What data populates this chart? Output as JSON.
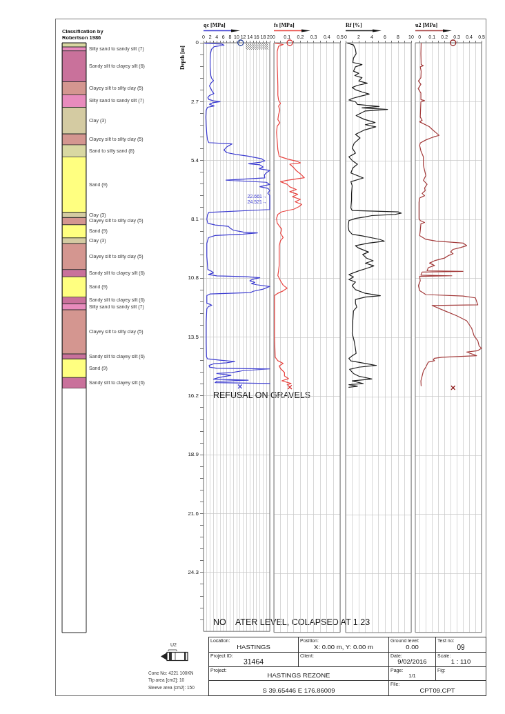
{
  "chart_data": [
    {
      "type": "bar",
      "stacked": true,
      "title": "Classification by Robertson 1986",
      "categories": [
        null
      ],
      "ylim": [
        27,
        0
      ],
      "tick_labels": false,
      "series": [
        {
          "color": "#d9d8a2",
          "values": [
            0.19
          ]
        },
        {
          "name": "Silty sand to sandy silt (7)",
          "color": "#e88bbd",
          "values": [
            0.18
          ]
        },
        {
          "name": "Sandy silt to clayey silt (6)",
          "color": "#c9719b",
          "values": [
            1.41
          ]
        },
        {
          "name": "Clayey silt to silty clay (5)",
          "color": "#d49690",
          "values": [
            0.6
          ]
        },
        {
          "name": "Silty sand to sandy silt (7)",
          "color": "#e88bbd",
          "values": [
            0.57
          ]
        },
        {
          "name": "Clay (3)",
          "color": "#d4cba2",
          "values": [
            1.22
          ]
        },
        {
          "name": "Clayey silt to silty clay (5)",
          "color": "#d49690",
          "values": [
            0.5
          ]
        },
        {
          "name": "Sand to silty sand (8)",
          "color": "#d9d8a2",
          "values": [
            0.56
          ]
        },
        {
          "name": "Sand (9)",
          "color": "#ffff80",
          "values": [
            2.54
          ]
        },
        {
          "name": "Clay (3)",
          "color": "#d4cba2",
          "values": [
            0.23
          ]
        },
        {
          "name": "Clayey silt to silty clay (5)",
          "color": "#d49690",
          "values": [
            0.33
          ]
        },
        {
          "name": "Sand (9)",
          "color": "#ffff80",
          "values": [
            0.6
          ]
        },
        {
          "name": "Clay (3)",
          "color": "#d4cba2",
          "values": [
            0.26
          ]
        },
        {
          "name": "Clayey silt to silty clay (5)",
          "color": "#d49690",
          "values": [
            1.19
          ]
        },
        {
          "name": "Sandy silt to clayey silt (6)",
          "color": "#c9719b",
          "values": [
            0.33
          ]
        },
        {
          "name": "Sand (9)",
          "color": "#ffff80",
          "values": [
            0.93
          ]
        },
        {
          "name": "Sandy silt to clayey silt (6)",
          "color": "#c9719b",
          "values": [
            0.31
          ]
        },
        {
          "name": "Silty sand to sandy silt (7)",
          "color": "#e88bbd",
          "values": [
            0.27
          ]
        },
        {
          "name": "Clayey silt to silty clay (5)",
          "color": "#d49690",
          "values": [
            2.02
          ]
        },
        {
          "name": "Sandy silt to clayey silt (6)",
          "color": "#c9719b",
          "values": [
            0.23
          ]
        },
        {
          "name": "Sand (9)",
          "color": "#ffff80",
          "values": [
            0.85
          ]
        },
        {
          "name": "Sandy silt to clayey silt (6)",
          "color": "#c9719b",
          "values": [
            0.5
          ]
        }
      ]
    },
    {
      "type": "line",
      "xlabel": "qc [MPa]",
      "ylabel": "Depth [m]",
      "xlim": [
        0,
        20
      ],
      "ylim": [
        27,
        0
      ],
      "grid": true,
      "xticks": [
        0,
        {
          "value": 1,
          "label": null
        },
        2,
        {
          "value": 3,
          "label": null
        },
        4,
        {
          "value": 5,
          "label": null
        },
        6,
        {
          "value": 7,
          "label": null
        },
        8,
        {
          "value": 9,
          "label": null
        },
        10,
        {
          "value": 11,
          "label": null
        },
        12,
        {
          "value": 13,
          "label": null
        },
        14,
        {
          "value": 15,
          "label": null
        },
        16,
        {
          "value": 17,
          "label": null
        },
        18,
        {
          "value": 19,
          "label": null
        },
        20
      ],
      "yticks": [
        0,
        {
          "value": 0.54,
          "label": null
        },
        {
          "value": 1.08,
          "label": null
        },
        {
          "value": 1.62,
          "label": null
        },
        {
          "value": 2.16,
          "label": null
        },
        2.7,
        {
          "value": 3.24,
          "label": null
        },
        {
          "value": 3.78,
          "label": null
        },
        {
          "value": 4.32,
          "label": null
        },
        {
          "value": 4.86,
          "label": null
        },
        5.4,
        {
          "value": 5.94,
          "label": null
        },
        {
          "value": 6.48,
          "label": null
        },
        {
          "value": 7.02,
          "label": null
        },
        {
          "value": 7.56,
          "label": null
        },
        8.1,
        {
          "value": 8.64,
          "label": null
        },
        {
          "value": 9.18,
          "label": null
        },
        {
          "value": 9.72,
          "label": null
        },
        {
          "value": 10.26,
          "label": null
        },
        10.8,
        {
          "value": 11.34,
          "label": null
        },
        {
          "value": 11.88,
          "label": null
        },
        {
          "value": 12.42,
          "label": null
        },
        {
          "value": 12.96,
          "label": null
        },
        13.5,
        {
          "value": 14.04,
          "label": null
        },
        {
          "value": 14.58,
          "label": null
        },
        {
          "value": 15.12,
          "label": null
        },
        {
          "value": 15.66,
          "label": null
        },
        16.2,
        {
          "value": 16.74,
          "label": null
        },
        {
          "value": 17.28,
          "label": null
        },
        {
          "value": 17.82,
          "label": null
        },
        {
          "value": 18.36,
          "label": null
        },
        18.9,
        {
          "value": 19.44,
          "label": null
        },
        {
          "value": 19.98,
          "label": null
        },
        {
          "value": 20.52,
          "label": null
        },
        {
          "value": 21.06,
          "label": null
        },
        21.6,
        {
          "value": 22.14,
          "label": null
        },
        {
          "value": 22.68,
          "label": null
        },
        {
          "value": 23.22,
          "label": null
        },
        {
          "value": 23.76,
          "label": null
        },
        24.3,
        {
          "value": 24.84,
          "label": null
        },
        {
          "value": 25.38,
          "label": null
        },
        {
          "value": 25.92,
          "label": null
        },
        {
          "value": 26.46,
          "label": null
        }
      ],
      "series": [
        {
          "color": "#3b3bd1",
          "x": [
            0.4,
            5.5,
            6.2,
            3.2,
            2.4,
            2.1,
            2.0,
            2.0,
            2.1,
            2.2,
            2.4,
            3.0,
            2.3,
            1.8,
            2.2,
            2.6,
            3.1,
            1.8,
            1.3,
            1.6,
            3.0,
            5.0,
            2.8,
            1.8,
            3.2,
            1.2,
            0.8,
            0.7,
            0.8,
            1.0,
            1.2,
            1.6,
            8.6,
            7.0,
            6.2,
            7.0,
            9.8,
            13.5,
            17.5,
            18.5,
            17.2,
            13.6,
            17.0,
            18.0,
            16.8,
            20,
            19.0,
            18.4,
            18.5,
            6.8,
            19.0,
            20,
            17.0,
            19.5,
            20,
            19.4,
            20,
            20,
            20,
            1.6,
            1.2,
            1.0,
            1.3,
            3.5,
            7.5,
            8.0,
            9.0,
            12.0,
            16.3,
            12.0,
            3.5,
            1.5,
            1.0,
            1.0,
            1.3,
            2.5,
            3.0,
            1.5,
            4.0,
            13.0,
            17.0,
            14.8,
            14.0,
            15.5,
            14.5,
            16.0,
            20,
            18.0,
            15.0,
            14.2,
            2.0,
            1.0,
            1.0,
            1.8,
            2.5,
            1.5,
            1.0,
            0.8,
            0.8,
            0.9,
            1.2,
            5.0,
            9.5,
            7.0,
            3.0,
            1.7,
            1.8,
            4.0,
            20,
            12.0,
            8.5,
            4.0,
            8.3,
            4.5,
            3.0,
            13.5,
            4.0,
            3.5,
            20
          ],
          "values": [
            0.02,
            0.06,
            0.11,
            0.18,
            0.3,
            0.5,
            0.8,
            1.1,
            1.3,
            1.5,
            1.62,
            1.74,
            1.84,
            1.98,
            2.1,
            2.22,
            2.33,
            2.42,
            2.52,
            2.6,
            2.66,
            2.7,
            2.75,
            2.82,
            2.9,
            2.96,
            3.1,
            3.4,
            3.8,
            4.2,
            4.45,
            4.58,
            4.64,
            4.78,
            4.92,
            5.04,
            5.12,
            5.2,
            5.32,
            5.42,
            5.48,
            5.55,
            5.6,
            5.7,
            5.78,
            5.86,
            5.96,
            6.06,
            6.2,
            6.3,
            6.4,
            6.5,
            6.6,
            6.68,
            6.78,
            6.9,
            7.0,
            7.4,
            7.65,
            7.78,
            7.9,
            8.1,
            8.28,
            8.36,
            8.42,
            8.5,
            8.6,
            8.68,
            8.72,
            8.78,
            8.84,
            8.94,
            9.2,
            9.8,
            10.4,
            10.49,
            10.56,
            10.63,
            10.69,
            10.73,
            10.78,
            10.85,
            10.92,
            10.99,
            11.05,
            11.1,
            11.18,
            11.3,
            11.4,
            11.46,
            11.52,
            11.6,
            11.95,
            11.99,
            12.04,
            12.1,
            12.2,
            12.8,
            13.8,
            14.4,
            14.5,
            14.56,
            14.62,
            14.68,
            14.73,
            14.8,
            14.88,
            14.93,
            14.96,
            15.04,
            15.13,
            15.17,
            15.26,
            15.36,
            15.43,
            15.48,
            15.53,
            15.59,
            15.63
          ]
        },
        {
          "type": "scatter",
          "marker": "circle",
          "color": "#1f3a93",
          "x": [
            11.2
          ],
          "values": [
            0
          ]
        },
        {
          "type": "scatter",
          "marker": "cross",
          "color": "#3b3bd1",
          "x": [
            11
          ],
          "values": [
            15.77
          ]
        }
      ],
      "annotations": [
        {
          "text": "22.661→",
          "x": 20,
          "y": 7.05
        },
        {
          "text": "24.521→",
          "x": 20,
          "y": 7.3
        },
        "REFUSAL ON GRAVELS",
        "NO    ATER LEVEL, COLAPSED AT 1.23"
      ]
    },
    {
      "type": "line",
      "xlabel": "fs [MPa]",
      "xlim": [
        0,
        0.5
      ],
      "ylim": [
        27,
        0
      ],
      "grid": true,
      "tick_labels": "x",
      "xticks": [
        0,
        {
          "value": 0.05,
          "label": null
        },
        0.1,
        {
          "value": 0.15,
          "label": null
        },
        0.2,
        {
          "value": 0.25,
          "label": null
        },
        0.3,
        {
          "value": 0.35,
          "label": null
        },
        0.4,
        {
          "value": 0.45,
          "label": null
        },
        0.5
      ],
      "yticks": [
        0,
        2.7,
        5.4,
        8.1,
        10.8,
        13.5,
        16.2,
        18.9,
        21.6,
        24.3
      ],
      "series": [
        {
          "color": "#e8433f",
          "x": [
            0.01,
            0.07,
            0.035,
            0.025,
            0.025,
            0.028,
            0.03,
            0.03,
            0.035,
            0.05,
            0.035,
            0.045,
            0.035,
            0.03,
            0.045,
            0.025,
            0.02,
            0.025,
            0.03,
            0.04,
            0.1,
            0.18,
            0.2,
            0.12,
            0.15,
            0.17,
            0.2,
            0.23,
            0.1,
            0.05,
            0.1,
            0.12,
            0.17,
            0.12,
            0.18,
            0.14,
            0.2,
            0.16,
            0.21,
            0.19,
            0.15,
            0.06,
            0.03,
            0.02,
            0.025,
            0.04,
            0.06,
            0.05,
            0.07,
            0.05,
            0.04,
            0.04,
            0.04,
            0.035,
            0.03,
            0.05,
            0.07,
            0.1,
            0.07,
            0.03,
            0.005,
            0.005,
            0.005,
            0.01,
            0.03,
            0.07,
            0.04,
            0.05,
            0.08,
            0.08,
            0.11,
            0.06,
            0.13,
            0.1
          ],
          "values": [
            0.02,
            0.08,
            0.16,
            0.4,
            1.0,
            1.5,
            2.0,
            2.4,
            2.62,
            2.78,
            2.9,
            3.08,
            3.3,
            3.52,
            3.66,
            3.82,
            4.1,
            4.5,
            4.9,
            5.2,
            5.32,
            5.44,
            5.5,
            5.56,
            5.72,
            5.86,
            6.0,
            6.18,
            6.3,
            6.36,
            6.48,
            6.6,
            6.72,
            6.82,
            6.94,
            7.05,
            7.17,
            7.28,
            7.4,
            7.5,
            7.62,
            7.74,
            7.86,
            8.04,
            8.26,
            8.38,
            8.54,
            8.72,
            8.92,
            9.06,
            9.3,
            9.9,
            10.2,
            10.45,
            10.66,
            10.9,
            11.1,
            11.24,
            11.36,
            11.47,
            11.58,
            12.5,
            13.5,
            14.4,
            14.56,
            14.68,
            14.8,
            14.92,
            15.1,
            15.26,
            15.38,
            15.48,
            15.6,
            15.66
          ]
        },
        {
          "type": "scatter",
          "marker": "circle",
          "color": "#d42a2a",
          "x": [
            0.12
          ],
          "values": [
            0
          ]
        },
        {
          "type": "scatter",
          "marker": "cross",
          "color": "#d42a2a",
          "x": [
            0.12
          ],
          "values": [
            15.77
          ]
        }
      ]
    },
    {
      "type": "line",
      "xlabel": "Rf [%]",
      "xlim": [
        0,
        10
      ],
      "ylim": [
        27,
        0
      ],
      "grid": true,
      "tick_labels": "x",
      "xticks": [
        0,
        {
          "value": 1,
          "label": null
        },
        2,
        {
          "value": 3,
          "label": null
        },
        4,
        {
          "value": 5,
          "label": null
        },
        6,
        {
          "value": 7,
          "label": null
        },
        8,
        {
          "value": 9,
          "label": null
        },
        10
      ],
      "yticks": [
        0,
        2.7,
        5.4,
        8.1,
        10.8,
        13.5,
        16.2,
        18.9,
        21.6,
        24.3
      ],
      "series": [
        {
          "color": "#1c1c1c",
          "x": [
            0.3,
            1.2,
            1.5,
            1.6,
            1.2,
            1.1,
            2.5,
            1.5,
            1.2,
            2.0,
            1.4,
            2.5,
            2.0,
            3.3,
            1.8,
            1.0,
            1.5,
            2.5,
            3.6,
            2.2,
            1.0,
            0.5,
            1.5,
            1.8,
            5.1,
            2.5,
            6.4,
            3.0,
            1.6,
            2.8,
            4.5,
            3.0,
            4.6,
            2.8,
            1.5,
            2.2,
            1.3,
            1.0,
            1.5,
            0.5,
            1.0,
            1.8,
            1.1,
            0.8,
            2.7,
            0.8,
            1.0,
            0.9,
            0.9,
            0.8,
            1.0,
            8.0,
            8.5,
            7.5,
            4.0,
            3.0,
            1.5,
            0.5,
            0.4,
            0.5,
            1.0,
            2.5,
            5.2,
            5.9,
            3.5,
            1.5,
            2.0,
            3.5,
            2.6,
            3.2,
            4.2,
            3.0,
            4.3,
            3.3,
            2.0,
            0.5,
            1.2,
            0.5,
            1.5,
            1.0,
            1.5,
            3.0,
            5.3,
            3.0,
            1.5,
            1.5,
            1.7,
            1.2,
            1.1,
            1.0,
            1.3,
            1.5,
            1.6,
            1.0,
            0.5,
            0.8,
            3.0,
            4.7,
            2.0,
            0.6,
            1.2,
            2.0,
            4.0,
            1.0,
            2.7,
            0.5,
            1.8,
            0.5
          ],
          "values": [
            0.02,
            0.1,
            0.3,
            0.5,
            0.7,
            0.9,
            1.0,
            1.1,
            1.3,
            1.4,
            1.5,
            1.6,
            1.75,
            1.85,
            1.95,
            2.05,
            2.15,
            2.25,
            2.35,
            2.45,
            2.55,
            2.62,
            2.7,
            2.82,
            2.92,
            2.98,
            3.05,
            3.12,
            3.33,
            3.5,
            3.65,
            3.75,
            3.85,
            4.0,
            4.19,
            4.36,
            4.6,
            4.82,
            5.05,
            5.22,
            5.39,
            5.56,
            5.73,
            5.96,
            6.19,
            6.36,
            6.54,
            6.9,
            7.2,
            7.56,
            7.68,
            7.74,
            7.8,
            7.86,
            7.91,
            7.97,
            8.04,
            8.14,
            8.4,
            8.6,
            8.77,
            8.84,
            9.0,
            9.08,
            9.17,
            9.29,
            9.4,
            9.58,
            9.69,
            9.86,
            9.98,
            10.09,
            10.21,
            10.32,
            10.44,
            10.61,
            10.72,
            10.84,
            10.95,
            11.12,
            11.3,
            11.47,
            11.58,
            11.64,
            11.75,
            11.93,
            12.1,
            12.27,
            12.7,
            13.3,
            13.65,
            14.0,
            14.22,
            14.33,
            14.45,
            14.56,
            14.68,
            14.77,
            14.85,
            14.95,
            15.14,
            15.26,
            15.39,
            15.48,
            15.6,
            15.65,
            15.72,
            15.77
          ]
        }
      ]
    },
    {
      "type": "line",
      "xlabel": "u2 [MPa]",
      "xlim": [
        -0.035,
        0.5
      ],
      "ylim": [
        27,
        0
      ],
      "grid": true,
      "tick_labels": "x",
      "xticks": [
        0,
        {
          "value": 0.05,
          "label": null
        },
        0.1,
        {
          "value": 0.15,
          "label": null
        },
        0.2,
        {
          "value": 0.25,
          "label": null
        },
        0.3,
        {
          "value": 0.35,
          "label": null
        },
        0.4,
        {
          "value": 0.45,
          "label": null
        },
        0.5
      ],
      "yticks": [
        0,
        2.7,
        5.4,
        8.1,
        10.8,
        13.5,
        16.2,
        18.9,
        21.6,
        24.3
      ],
      "series": [
        {
          "color": "#a33a3a",
          "x": [
            0.012,
            0.01,
            0.012,
            0.03,
            0.005,
            0.012,
            0.01,
            -0.01,
            0.01,
            -0.012,
            0.01,
            0.01,
            0.04,
            0.01,
            0.005,
            0.02,
            0,
            0.077,
            0.11,
            0.147,
            0.157,
            0.12,
            0.09,
            0.05,
            0.005,
            0,
            0.01,
            0.03,
            0.03,
            0.04,
            0.05,
            0.03,
            0.06,
            0.04,
            0.045,
            0.02,
            0.04,
            0,
            -0.005,
            -0.005,
            -0.005,
            0.005,
            0.04,
            0.01,
            0.005,
            0,
            0.05,
            0.13,
            0.35,
            0.38,
            0.33,
            0.27,
            0.25,
            0.27,
            0.23,
            0.2,
            0.12,
            0.08,
            0.12,
            0.07,
            0.06,
            0.35,
            0.02,
            0.01,
            0.26,
            0,
            0.005,
            -0.01,
            0,
            0.05,
            0.35,
            0.45,
            0.47,
            0.1,
            0.2,
            0.3,
            0.38,
            0.42,
            0.44,
            0.47,
            0.48,
            0.5,
            0.47,
            0.38,
            0.46,
            0.18,
            0.12,
            0.11,
            0.12,
            0.07,
            0.05,
            0.03,
            0.02,
            0.01,
            0.012
          ],
          "values": [
            0.02,
            0.5,
            1.0,
            1.05,
            1.1,
            1.3,
            1.6,
            1.75,
            1.9,
            2.1,
            2.3,
            2.6,
            2.65,
            2.7,
            3.4,
            3.55,
            3.62,
            3.84,
            4.01,
            4.19,
            4.24,
            4.3,
            4.36,
            4.45,
            4.59,
            4.7,
            4.95,
            5.22,
            5.6,
            5.85,
            6.08,
            6.3,
            6.48,
            6.65,
            6.77,
            6.9,
            7.0,
            7.11,
            7.3,
            7.7,
            8.05,
            8.14,
            8.23,
            8.29,
            8.6,
            8.83,
            9.0,
            9.08,
            9.17,
            9.29,
            9.38,
            9.46,
            9.58,
            9.66,
            9.75,
            9.86,
            9.98,
            10.09,
            10.2,
            10.3,
            10.44,
            10.47,
            10.5,
            10.64,
            10.67,
            10.7,
            10.9,
            11.12,
            11.35,
            11.53,
            11.6,
            11.68,
            12.0,
            12.03,
            12.27,
            12.5,
            12.73,
            13.07,
            13.42,
            13.65,
            13.88,
            13.99,
            14.1,
            14.16,
            14.33,
            14.4,
            14.45,
            14.5,
            14.56,
            14.62,
            14.85,
            15.03,
            15.26,
            15.48,
            15.71
          ]
        },
        {
          "type": "scatter",
          "marker": "circle",
          "color": "#8e1b1b",
          "x": [
            0.27
          ],
          "values": [
            0
          ]
        },
        {
          "type": "scatter",
          "marker": "cross",
          "color": "#8e1b1b",
          "x": [
            0.27
          ],
          "values": [
            15.8
          ]
        }
      ]
    },
    {
      "type": "other",
      "annotations": [
        "Location:",
        "HASTINGS",
        "Position:",
        "X: 0.00 m, Y: 0.00 m",
        "Ground level:",
        "0.00",
        "Test no:",
        "09",
        "Project ID:",
        "31464",
        "Client:",
        "Date:",
        "9/02/2016",
        "Scale:",
        "1 : 110",
        "Project:",
        "HASTINGS REZONE",
        "Page:",
        "1/1",
        "Fig:",
        "S 39.65446 E 176.86009",
        "File:",
        "CPT09.CPT",
        "U2",
        "Cone No: 4221 100KN",
        "Tip area [cm2]: 10",
        "Sleeve area [cm2]: 150"
      ]
    }
  ]
}
